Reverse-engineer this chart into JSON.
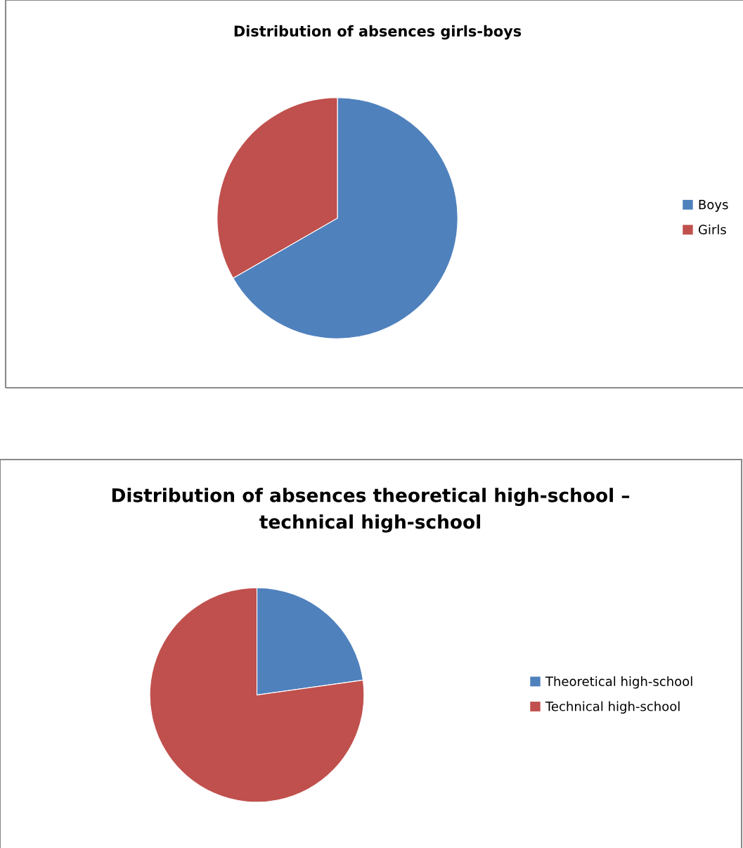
{
  "chart_data": [
    {
      "type": "pie",
      "title": "Distribution of absences girls-boys",
      "categories": [
        "Boys",
        "Girls"
      ],
      "values": [
        66.7,
        33.3
      ],
      "colors": [
        "#4f81bd",
        "#c0504d"
      ],
      "legend": "right"
    },
    {
      "type": "pie",
      "title": "Distribution of absences theoretical high-school – technical high-school",
      "categories": [
        "Theoretical high-school",
        "Technical high-school"
      ],
      "values": [
        22.8,
        77.2
      ],
      "colors": [
        "#4f81bd",
        "#c0504d"
      ],
      "legend": "right"
    }
  ]
}
